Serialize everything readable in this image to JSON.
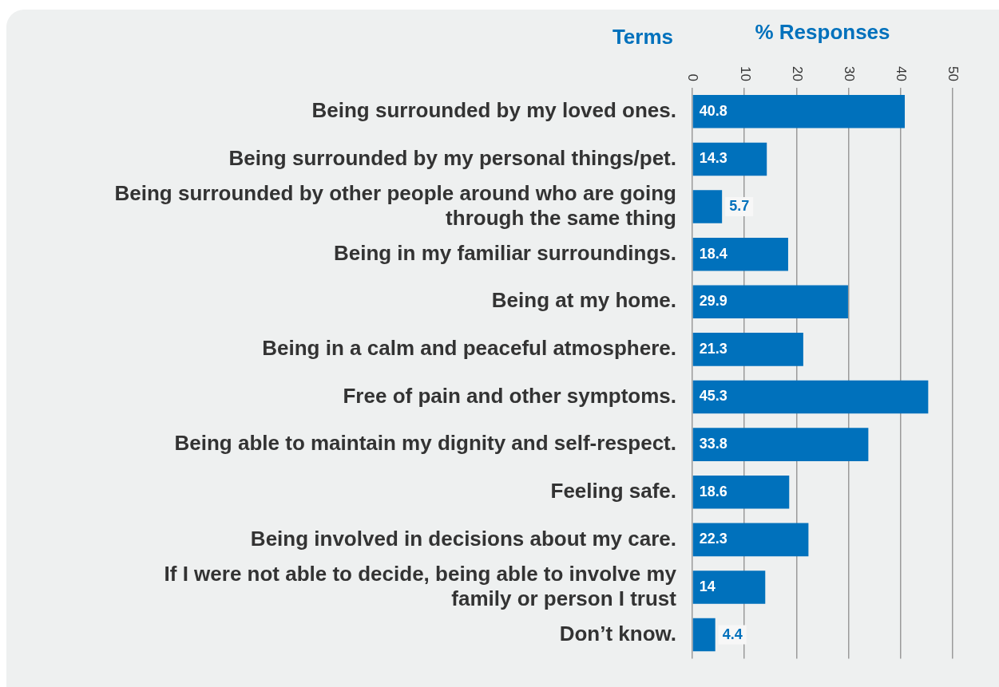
{
  "chart_data": {
    "type": "bar",
    "orientation": "horizontal",
    "xlabel": "% Responses",
    "ylabel": "Terms",
    "categories": [
      "Being surrounded by my loved ones.",
      "Being surrounded by my personal things/pet.",
      "Being surrounded by other people around who are going through the same thing",
      "Being in my familiar surroundings.",
      "Being at my home.",
      "Being in a calm and peaceful atmosphere.",
      "Free of pain and other symptoms.",
      "Being able to maintain my dignity and self-respect.",
      "Feeling safe.",
      "Being involved in decisions about my care.",
      "If I were not able to decide, being able to involve my family or person I trust",
      "Don’t know."
    ],
    "values": [
      40.8,
      14.3,
      5.7,
      18.4,
      29.9,
      21.3,
      45.3,
      33.8,
      18.6,
      22.3,
      14,
      4.4
    ],
    "color": "#0071bc",
    "xlim": [
      0,
      50
    ],
    "xticks": [
      0,
      10,
      20,
      30,
      40,
      50
    ],
    "grid": "x",
    "data_labels": true
  }
}
